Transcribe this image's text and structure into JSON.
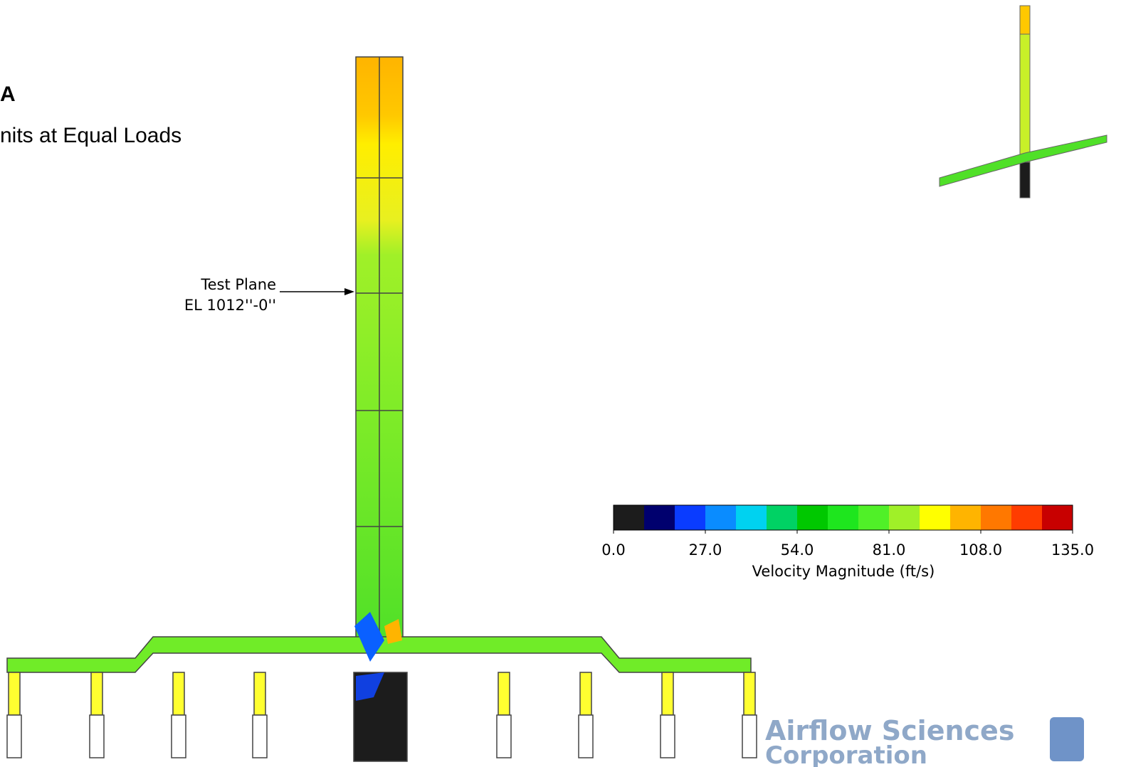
{
  "slide": {
    "title_fragment": "A",
    "subtitle_fragment": "nits at Equal Loads"
  },
  "annotation": {
    "line1": "Test Plane",
    "line2": "EL 1012''-0''"
  },
  "colorbar": {
    "label": "Velocity Magnitude (ft/s)",
    "lim": [
      0,
      135
    ],
    "ticks": [
      {
        "value": 0,
        "label": "0.0"
      },
      {
        "value": 27,
        "label": "27.0"
      },
      {
        "value": 54,
        "label": "54.0"
      },
      {
        "value": 81,
        "label": "81.0"
      },
      {
        "value": 108,
        "label": "108.0"
      },
      {
        "value": 135,
        "label": "135.0"
      }
    ],
    "colors": [
      "#1c1c1c",
      "#00006e",
      "#0a3cff",
      "#0a8cff",
      "#00d2f0",
      "#00d264",
      "#00c800",
      "#1ee61e",
      "#50f028",
      "#a0f028",
      "#ffff00",
      "#ffb400",
      "#ff7800",
      "#ff3c00",
      "#c80000"
    ]
  },
  "logo": {
    "line1": "Airflow Sciences",
    "line2": "Corporation"
  }
}
